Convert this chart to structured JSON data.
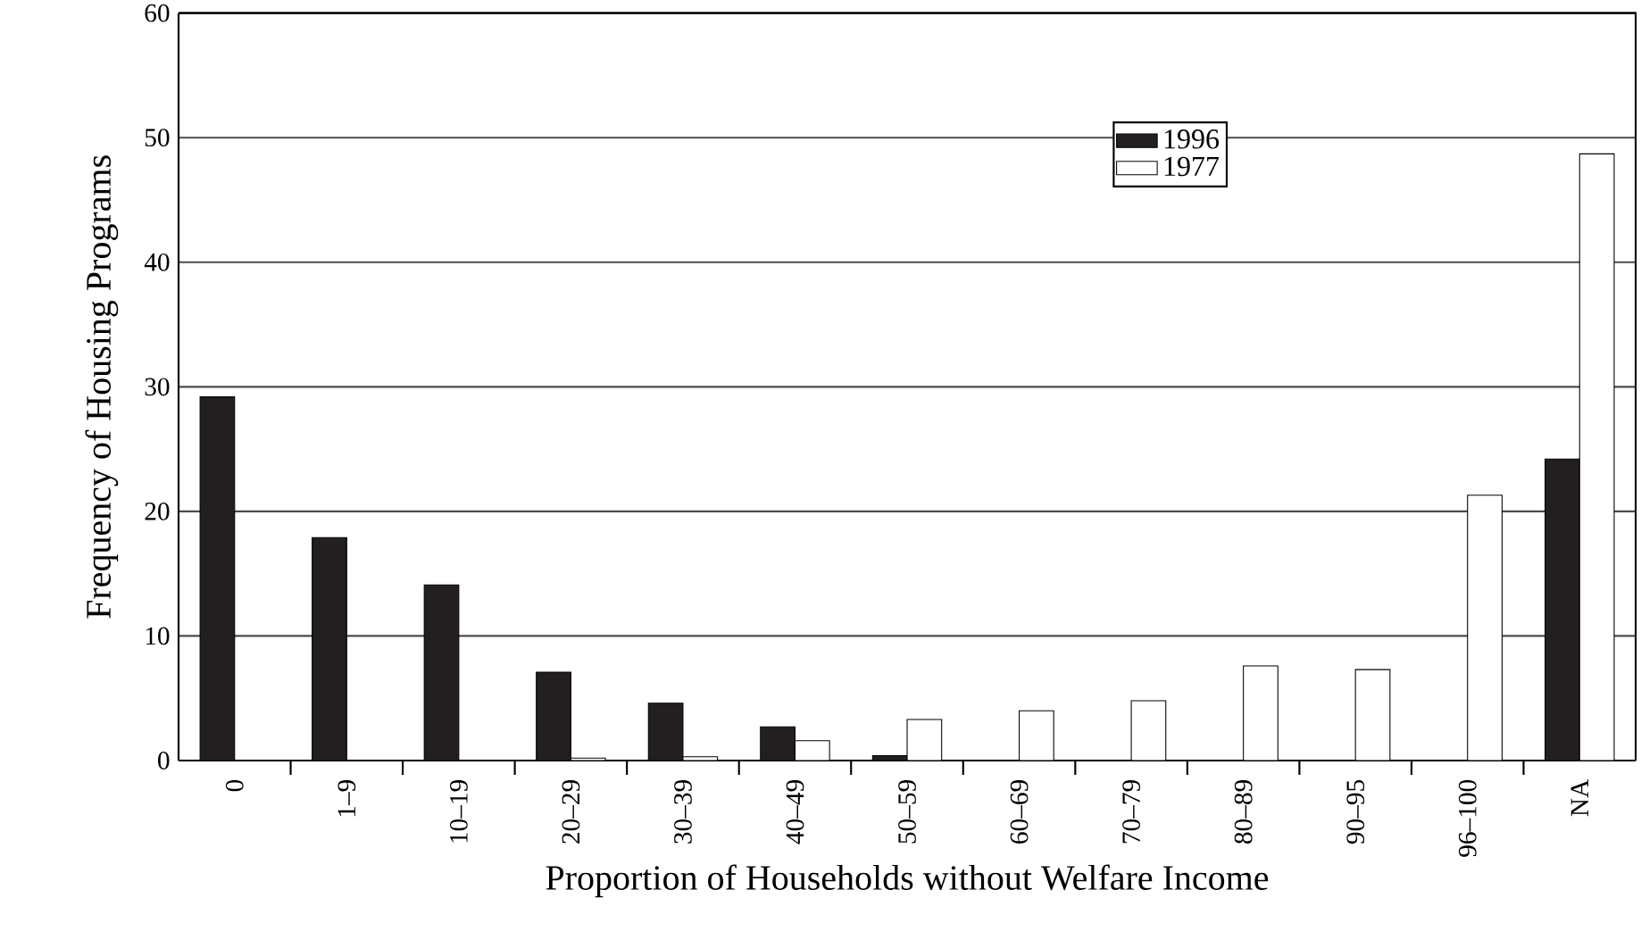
{
  "chart_data": {
    "type": "bar",
    "xlabel": "Proportion of Households without Welfare Income",
    "ylabel": "Frequency of Housing Programs",
    "categories": [
      "0",
      "1–9",
      "10–19",
      "20–29",
      "30–39",
      "40–49",
      "50–59",
      "60–69",
      "70–79",
      "80–89",
      "90–95",
      "96–100",
      "NA"
    ],
    "series": [
      {
        "name": "1996",
        "color": "#231f20",
        "values": [
          29.2,
          17.9,
          14.1,
          7.1,
          4.6,
          2.7,
          0.4,
          0,
          0,
          0,
          0,
          0,
          24.2
        ]
      },
      {
        "name": "1977",
        "color": "#ffffff",
        "values": [
          0,
          0,
          0,
          0.2,
          0.3,
          1.6,
          3.3,
          4.0,
          4.8,
          7.6,
          7.3,
          21.3,
          48.7
        ]
      }
    ],
    "ylim": [
      0,
      60
    ],
    "yticks": [
      0,
      10,
      20,
      30,
      40,
      50,
      60
    ],
    "grid": "y",
    "legend": "top right"
  }
}
